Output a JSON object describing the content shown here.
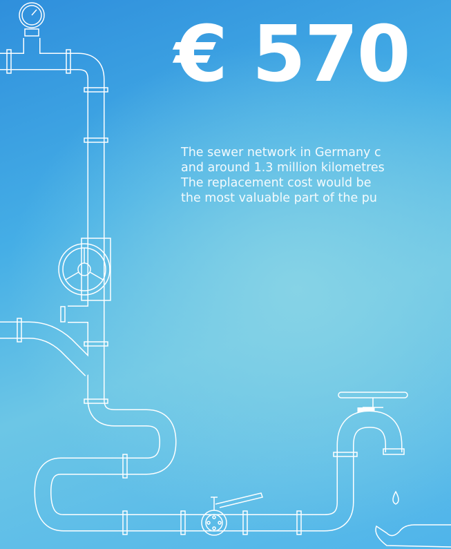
{
  "headline": "€ 570",
  "paragraph": {
    "lines": [
      "The sewer network in Germany c",
      "and around 1.3 million kilometres",
      "The replacement cost would be",
      "the most valuable part of the pu"
    ]
  }
}
